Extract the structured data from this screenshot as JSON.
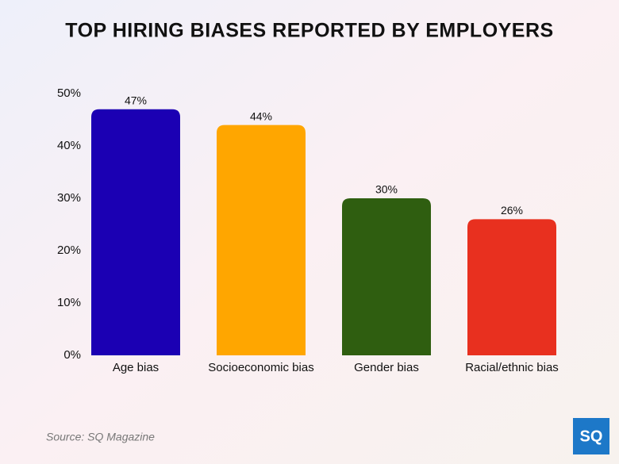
{
  "chart_data": {
    "type": "bar",
    "title": "TOP HIRING BIASES REPORTED BY EMPLOYERS",
    "categories": [
      "Age bias",
      "Socioeconomic bias",
      "Gender bias",
      "Racial/ethnic bias"
    ],
    "values": [
      47,
      44,
      30,
      26
    ],
    "value_labels": [
      "47%",
      "44%",
      "30%",
      "26%"
    ],
    "colors": [
      "#1b00b3",
      "#ffa600",
      "#2f5e10",
      "#e8301f"
    ],
    "ylim": [
      0,
      50
    ],
    "yticks": [
      {
        "value": 0,
        "label": "0%"
      },
      {
        "value": 10,
        "label": "10%"
      },
      {
        "value": 20,
        "label": "20%"
      },
      {
        "value": 30,
        "label": "30%"
      },
      {
        "value": 40,
        "label": "40%"
      },
      {
        "value": 50,
        "label": "50%"
      }
    ],
    "grid": false,
    "source": "Source: SQ Magazine",
    "logo": "SQ"
  }
}
